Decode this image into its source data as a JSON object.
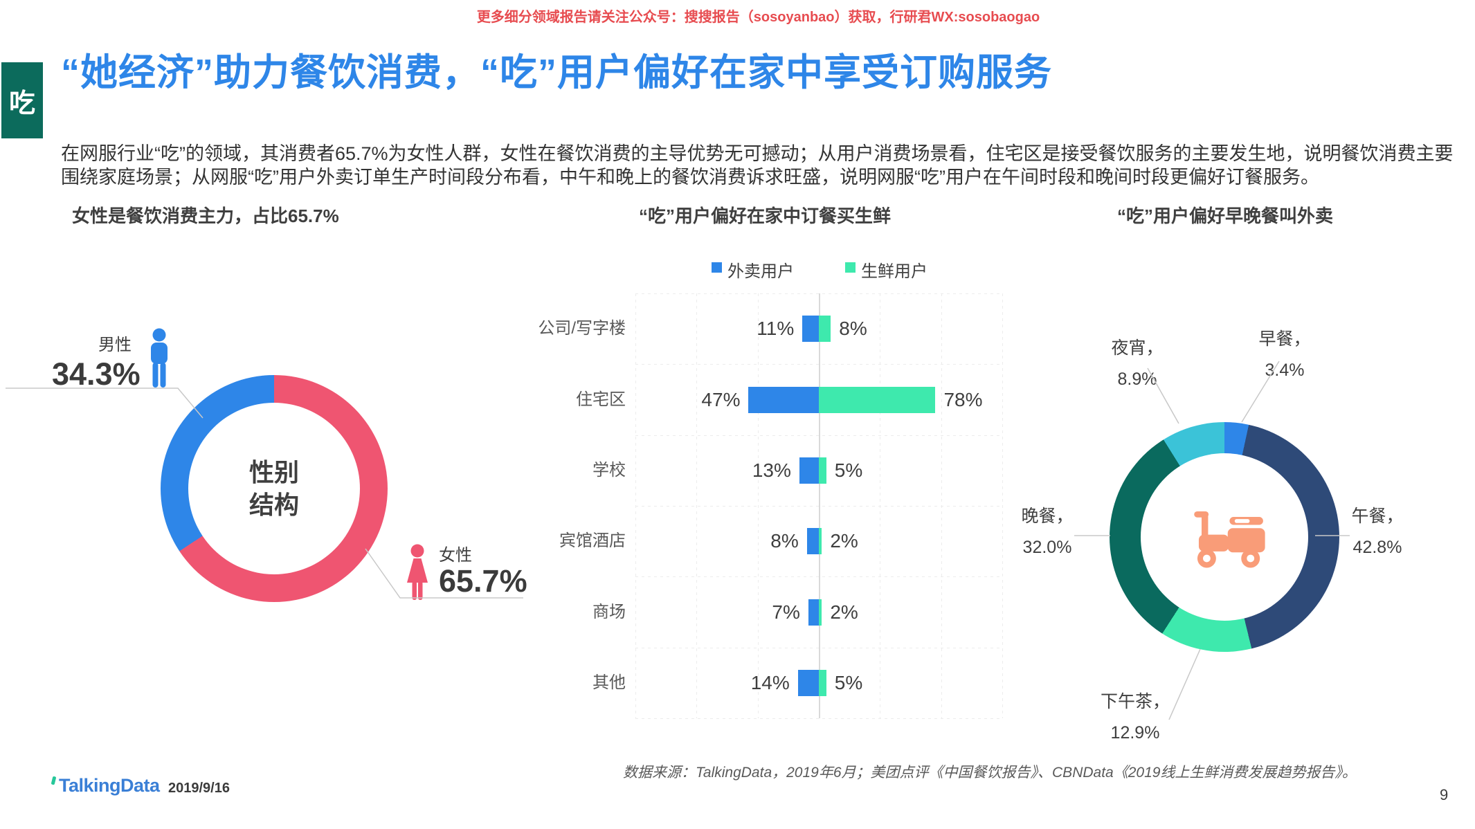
{
  "page": {
    "header_notice": "更多细分领域报告请关注公众号：搜搜报告（sosoyanbao）获取，行研君WX:sosobaogao",
    "tab": "吃",
    "title": "“她经济”助力餐饮消费，“吃”用户偏好在家中享受订购服务",
    "intro_lines": [
      "在网服行业“吃”的领域，其消费者65.7%为女性人群，女性在餐饮消费的主导优势无可撼动；从用户消费场景看，住宅区是接受餐饮服务的主要发生地，说明餐饮消费主要",
      "围绕家庭场景；从网服“吃”用户外卖订单生产时间段分布看，中午和晚上的餐饮消费诉求旺盛，说明网服“吃”用户在午间时段和晚间时段更偏好订餐服务。"
    ],
    "footer": {
      "source": "数据来源：TalkingData，2019年6月；美团点评《中国餐饮报告》、CBNData《2019线上生鲜消费发展趋势报告》。",
      "logo": "TalkingData",
      "date": "2019/9/16",
      "page_number": "9"
    }
  },
  "chart_data": [
    {
      "type": "pie",
      "donut": true,
      "title": "女性是餐饮消费主力，占比65.7%",
      "center_label_lines": [
        "性别",
        "结构"
      ],
      "start": "top",
      "direction": "clockwise",
      "slices": [
        {
          "label": "女性",
          "value": 65.7,
          "value_label": "65.7%",
          "color": "#ef5571"
        },
        {
          "label": "男性",
          "value": 34.3,
          "value_label": "34.3%",
          "color": "#2e86e8"
        }
      ]
    },
    {
      "type": "bar",
      "orientation": "diverging-horizontal",
      "title": "“吃”用户偏好在家中订餐买生鲜",
      "unit": "%",
      "grid": true,
      "legend_position": "top",
      "categories": [
        "公司/写字楼",
        "住宅区",
        "学校",
        "宾馆酒店",
        "商场",
        "其他"
      ],
      "series": [
        {
          "name": "外卖用户",
          "color": "#2e86e8",
          "direction": "left",
          "values": [
            11,
            47,
            13,
            8,
            7,
            14
          ]
        },
        {
          "name": "生鲜用户",
          "color": "#3ee9ad",
          "direction": "right",
          "values": [
            8,
            78,
            5,
            2,
            2,
            5
          ]
        }
      ]
    },
    {
      "type": "pie",
      "donut": true,
      "title": "“吃”用户偏好早晚餐叫外卖",
      "start": "top",
      "direction": "clockwise",
      "center_icon": "delivery-scooter-icon",
      "center_icon_color": "#f99c78",
      "slices": [
        {
          "label": "早餐",
          "value": 3.4,
          "value_label": "3.4%",
          "color": "#2e86e8"
        },
        {
          "label": "午餐",
          "value": 42.8,
          "value_label": "42.8%",
          "color": "#2e4a78"
        },
        {
          "label": "下午茶",
          "value": 12.9,
          "value_label": "12.9%",
          "color": "#3ee9ad"
        },
        {
          "label": "晚餐",
          "value": 32.0,
          "value_label": "32.0%",
          "color": "#0a6a5e"
        },
        {
          "label": "夜宵",
          "value": 8.9,
          "value_label": "8.9%",
          "color": "#3bc3d8"
        }
      ]
    }
  ]
}
